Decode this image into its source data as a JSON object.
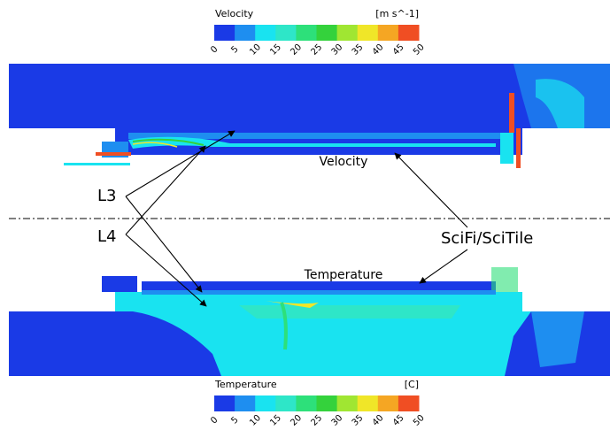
{
  "velocity_legend": {
    "title": "Velocity",
    "unit": "[m s^-1]",
    "ticks": [
      0,
      5,
      10,
      15,
      20,
      25,
      30,
      35,
      40,
      45,
      50
    ],
    "colors": [
      "#1a3ae6",
      "#1e8ef0",
      "#19e3f0",
      "#2ee6c8",
      "#2de07a",
      "#34d23c",
      "#a0e632",
      "#f0e628",
      "#f5a623",
      "#f04e23"
    ]
  },
  "temperature_legend": {
    "title": "Temperature",
    "unit": "[C]",
    "ticks": [
      0,
      5,
      10,
      15,
      20,
      25,
      30,
      35,
      40,
      45,
      50
    ],
    "colors": [
      "#1a3ae6",
      "#1e8ef0",
      "#19e3f0",
      "#2ee6c8",
      "#2de07a",
      "#34d23c",
      "#a0e632",
      "#f0e628",
      "#f5a623",
      "#f04e23"
    ]
  },
  "annotations": {
    "velocity": "Velocity",
    "temperature": "Temperature",
    "l3": "L3",
    "l4": "L4",
    "scifi": "SciFi/SciTile"
  }
}
